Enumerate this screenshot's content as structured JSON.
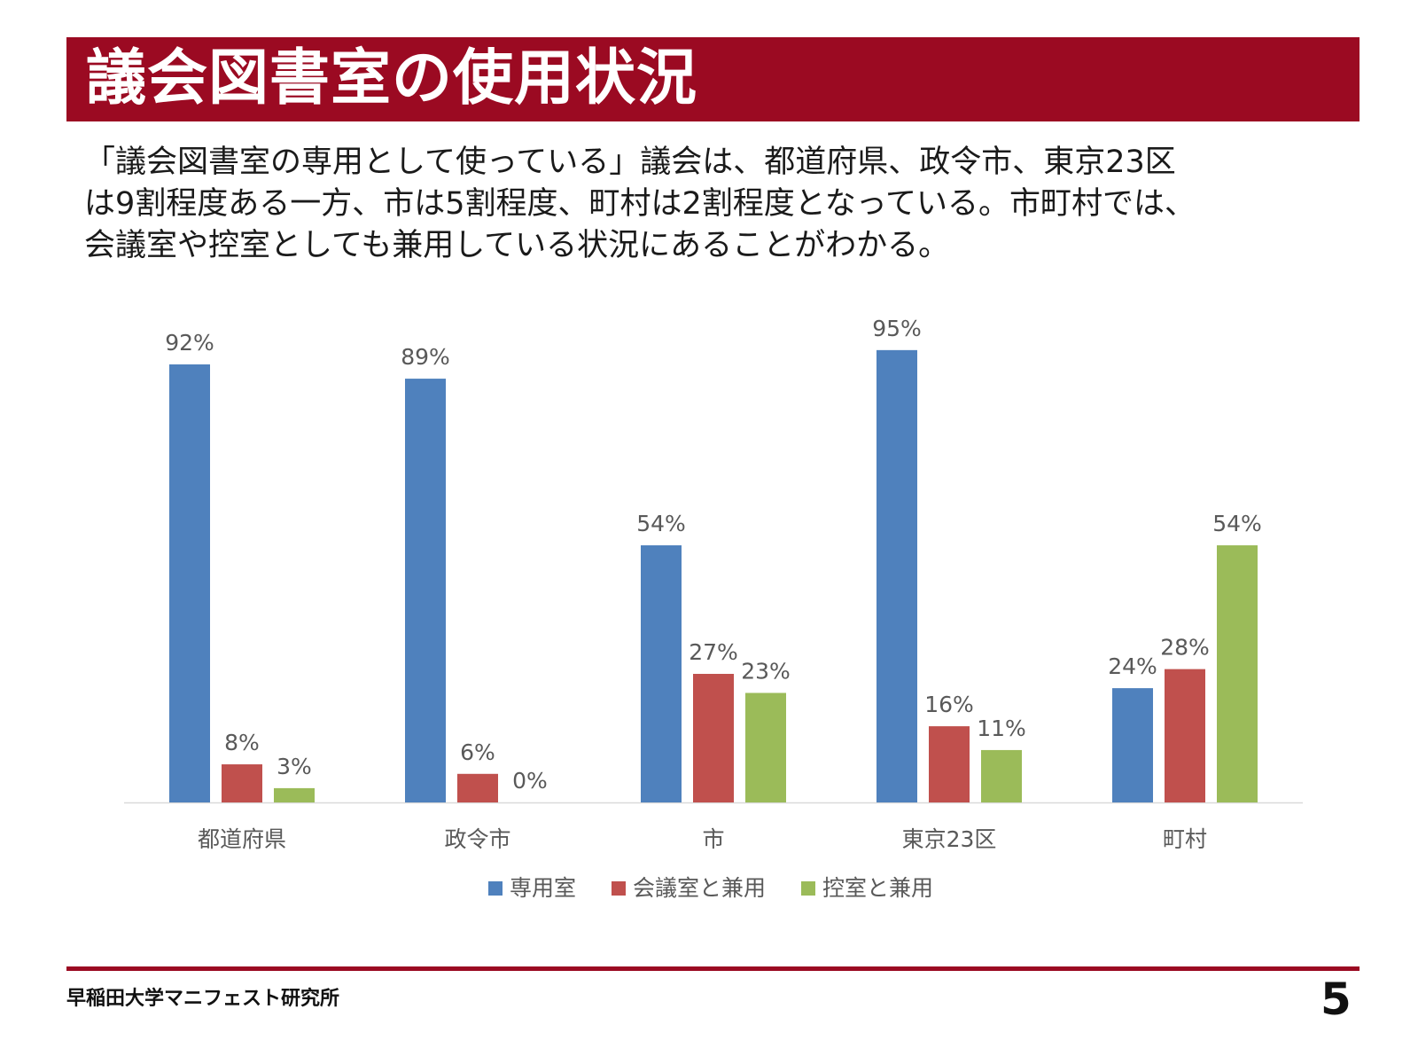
{
  "slide": {
    "title": "議会図書室の使用状況",
    "description": [
      "「議会図書室の専用として使っている」議会は、都道府県、政令市、東京23区",
      "は9割程度ある一方、市は5割程度、町村は2割程度となっている。市町村では、",
      "会議室や控室としても兼用している状況にあることがわかる。"
    ],
    "footer": "早稲田大学マニフェスト研究所",
    "page_number": "5",
    "colors": {
      "title_bar": "#9b0a22",
      "footer_line": "#9b0a22"
    }
  },
  "chart_data": {
    "type": "bar",
    "categories": [
      "都道府県",
      "政令市",
      "市",
      "東京23区",
      "町村"
    ],
    "series": [
      {
        "name": "専用室",
        "values": [
          92,
          89,
          54,
          95,
          24
        ],
        "color": "#4f81bd"
      },
      {
        "name": "会議室と兼用",
        "values": [
          8,
          6,
          27,
          16,
          28
        ],
        "color": "#c0504d"
      },
      {
        "name": "控室と兼用",
        "values": [
          3,
          0,
          23,
          11,
          54
        ],
        "color": "#9bbb59"
      }
    ],
    "value_suffix": "%",
    "ylim": [
      0,
      100
    ],
    "grid": false,
    "legend": "bottom"
  }
}
